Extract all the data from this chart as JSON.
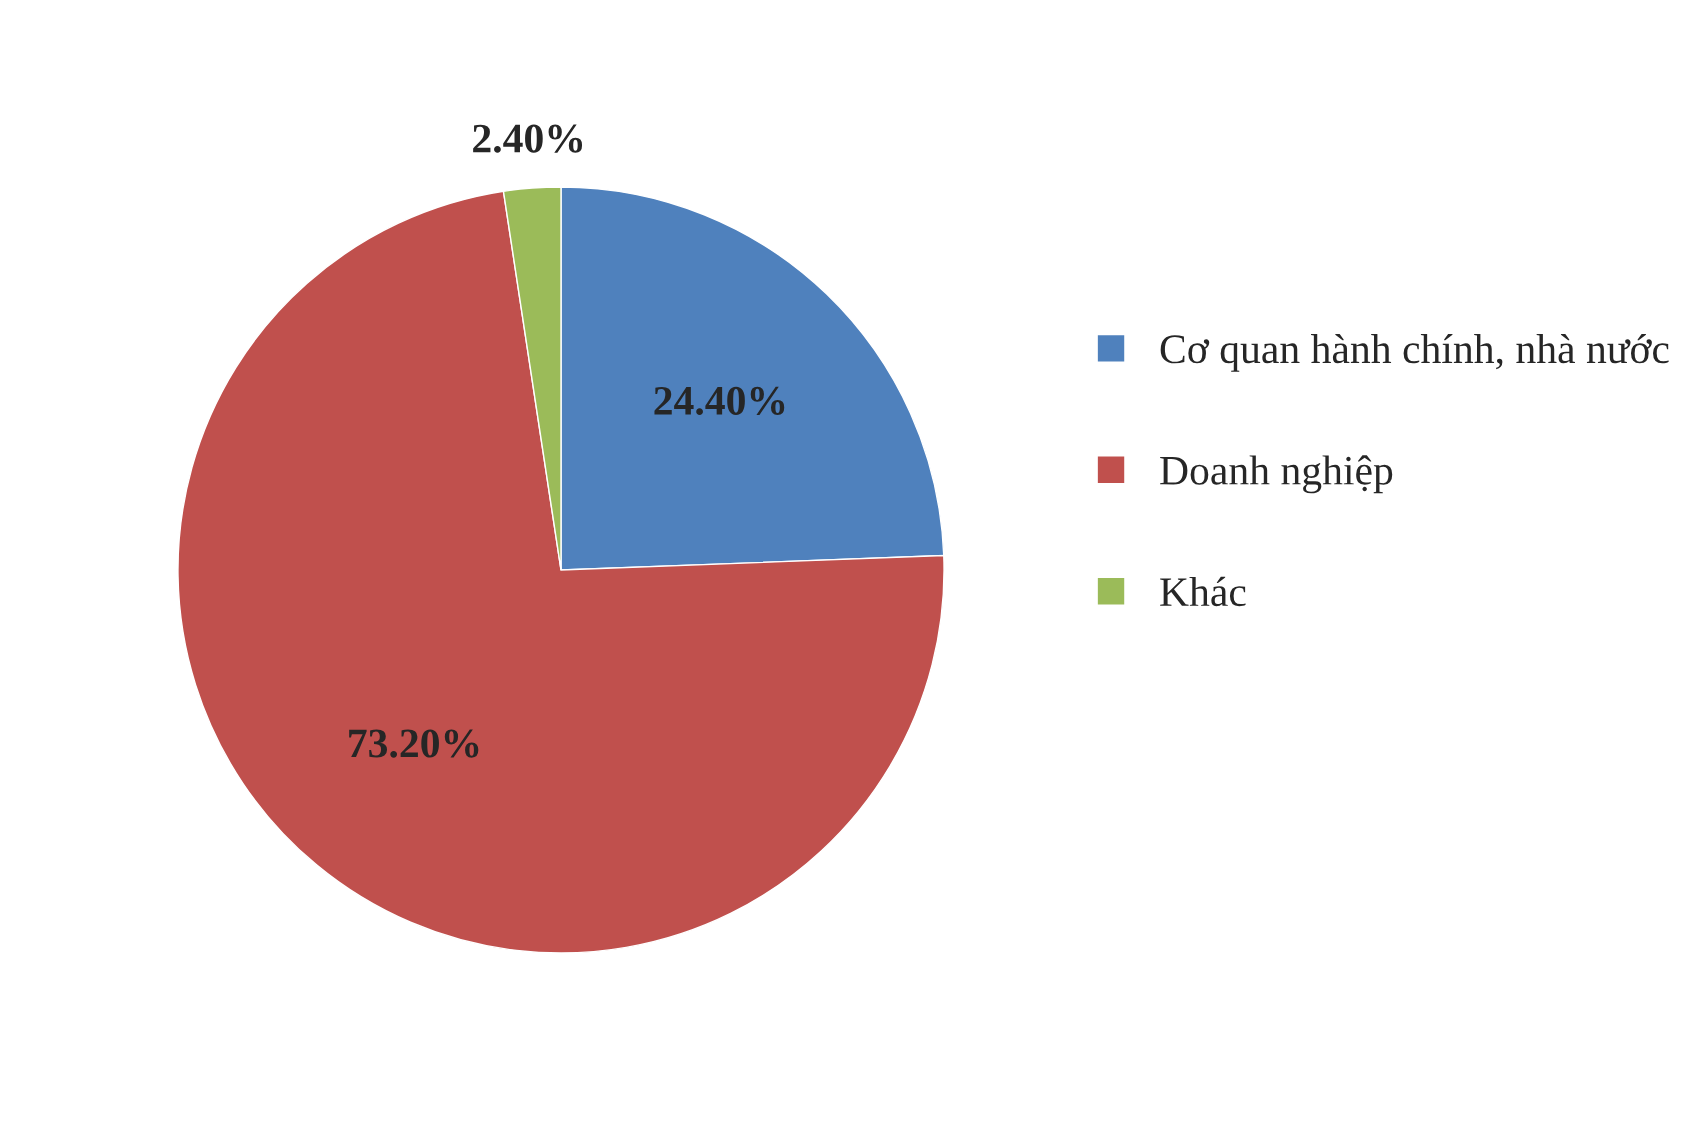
{
  "chart_data": {
    "type": "pie",
    "categories": [
      "Cơ quan hành chính, nhà nước",
      "Doanh nghiệp",
      "Khác"
    ],
    "values": [
      24.4,
      73.2,
      2.4
    ],
    "value_labels": [
      "24.40%",
      "73.20%",
      "2.40%"
    ],
    "colors": [
      "#4f81bd",
      "#c0504d",
      "#9bbb59"
    ],
    "legend": "right"
  }
}
